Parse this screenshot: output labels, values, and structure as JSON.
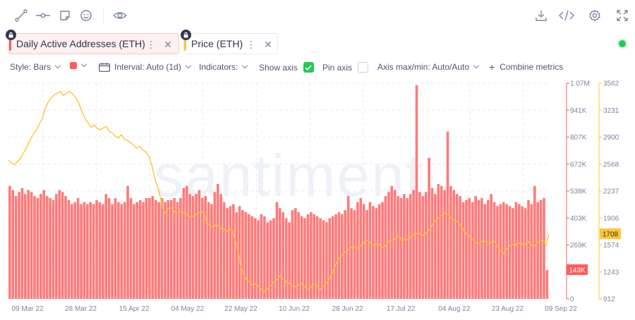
{
  "toolbar": {
    "icons": [
      "line-draw-icon",
      "horizontal-ray-icon",
      "note-icon",
      "emoji-icon",
      "eye-icon",
      "download-icon",
      "embed-code-icon",
      "settings-gear-icon",
      "fullscreen-icon"
    ]
  },
  "metrics": [
    {
      "label": "Daily Active Addresses (ETH)",
      "color": "#ff5b5b",
      "locked": true,
      "active": true
    },
    {
      "label": "Price (ETH)",
      "color": "#ffc532",
      "locked": true,
      "active": false
    }
  ],
  "settings": {
    "style": "Style: Bars",
    "color": "#ff5b5b",
    "interval": "Interval: Auto (1d)",
    "indicators": "Indicators:",
    "show_axis": "Show axis",
    "show_axis_checked": true,
    "pin_axis": "Pin axis",
    "pin_axis_checked": false,
    "axis_maxmin": "Axis max/min: Auto/Auto",
    "combine": "Combine metrics"
  },
  "colors": {
    "bars": "#ff7a7a",
    "price": "#ffc532",
    "grid": "#e7eaf3",
    "status": "#26c953"
  },
  "chart_data": {
    "type": "bar",
    "watermark": "santiment",
    "x_start": "2022-03-04",
    "x_end": "2022-09-09",
    "x_ticks": [
      "09 Mar 22",
      "28 Mar 22",
      "15 Apr 22",
      "04 May 22",
      "22 May 22",
      "10 Jun 22",
      "28 Jun 22",
      "17 Jul 22",
      "04 Aug 22",
      "23 Aug 22",
      "09 Sep 22"
    ],
    "y_left": {
      "min": 0,
      "max": 1070000,
      "ticks": [
        "1.07M",
        "941K",
        "807K",
        "672K",
        "538K",
        "403K",
        "269K",
        "134K",
        "0"
      ],
      "color": "#ff5b5b"
    },
    "y_right": {
      "min": 912,
      "max": 3562,
      "ticks": [
        "3562",
        "3231",
        "2900",
        "2568",
        "2237",
        "1906",
        "1574",
        "1243",
        "912"
      ],
      "color": "#ffc532"
    },
    "current_values": {
      "daily_active_addresses": "143K",
      "price": "1708"
    },
    "series": [
      {
        "name": "Daily Active Addresses (ETH)",
        "axis": "left",
        "type": "bar",
        "values": [
          560000,
          540000,
          510000,
          530000,
          550000,
          520000,
          540000,
          530000,
          510000,
          500000,
          520000,
          540000,
          510000,
          500000,
          490000,
          520000,
          540000,
          530000,
          510000,
          490000,
          470000,
          480000,
          500000,
          470000,
          480000,
          470000,
          480000,
          470000,
          490000,
          480000,
          470000,
          520000,
          500000,
          470000,
          500000,
          480000,
          470000,
          480000,
          560000,
          500000,
          470000,
          480000,
          490000,
          480000,
          500000,
          500000,
          510000,
          490000,
          480000,
          500000,
          480000,
          490000,
          490000,
          500000,
          480000,
          500000,
          550000,
          560000,
          520000,
          510000,
          520000,
          540000,
          500000,
          510000,
          480000,
          470000,
          530000,
          570000,
          520000,
          480000,
          450000,
          460000,
          470000,
          430000,
          460000,
          440000,
          430000,
          420000,
          410000,
          400000,
          390000,
          420000,
          410000,
          380000,
          390000,
          400000,
          480000,
          450000,
          430000,
          400000,
          380000,
          440000,
          450000,
          430000,
          410000,
          400000,
          420000,
          430000,
          420000,
          410000,
          400000,
          390000,
          380000,
          400000,
          410000,
          420000,
          430000,
          420000,
          440000,
          510000,
          450000,
          440000,
          480000,
          500000,
          470000,
          440000,
          480000,
          460000,
          450000,
          470000,
          480000,
          510000,
          530000,
          560000,
          540000,
          510000,
          500000,
          520000,
          500000,
          520000,
          540000,
          1060000,
          530000,
          510000,
          530000,
          700000,
          550000,
          520000,
          570000,
          560000,
          540000,
          830000,
          560000,
          540000,
          520000,
          510000,
          480000,
          490000,
          500000,
          480000,
          510000,
          490000,
          500000,
          470000,
          490000,
          520000,
          480000,
          460000,
          470000,
          480000,
          470000,
          460000,
          450000,
          480000,
          470000,
          460000,
          450000,
          490000,
          470000,
          560000,
          480000,
          490000,
          500000,
          143000
        ]
      },
      {
        "name": "Price (ETH)",
        "axis": "right",
        "type": "line",
        "values": [
          2620,
          2580,
          2560,
          2600,
          2640,
          2710,
          2780,
          2860,
          2930,
          2980,
          3050,
          3120,
          3250,
          3330,
          3380,
          3420,
          3440,
          3460,
          3410,
          3440,
          3460,
          3430,
          3380,
          3320,
          3220,
          3130,
          3080,
          3020,
          3050,
          3010,
          2990,
          3010,
          3030,
          2970,
          2950,
          2910,
          2890,
          2930,
          2870,
          2860,
          2830,
          2800,
          2760,
          2790,
          2740,
          2720,
          2660,
          2550,
          2380,
          2270,
          2120,
          1960,
          2010,
          2040,
          2000,
          1960,
          1990,
          1980,
          1960,
          1930,
          1920,
          1940,
          1960,
          1980,
          1970,
          1850,
          1810,
          1790,
          1830,
          1800,
          1770,
          1760,
          1740,
          1780,
          1660,
          1530,
          1330,
          1210,
          1140,
          1120,
          1080,
          1100,
          1060,
          1020,
          1000,
          1040,
          1080,
          1120,
          1150,
          1200,
          1160,
          1120,
          1100,
          1070,
          1060,
          1080,
          1100,
          1060,
          1040,
          1060,
          1090,
          1080,
          1030,
          1060,
          1100,
          1150,
          1230,
          1320,
          1400,
          1440,
          1480,
          1510,
          1540,
          1560,
          1520,
          1560,
          1580,
          1630,
          1620,
          1580,
          1570,
          1590,
          1560,
          1540,
          1590,
          1640,
          1630,
          1660,
          1690,
          1620,
          1650,
          1640,
          1680,
          1700,
          1720,
          1710,
          1690,
          1730,
          1760,
          1830,
          1880,
          1910,
          1940,
          1970,
          1950,
          1900,
          1880,
          1860,
          1820,
          1760,
          1710,
          1680,
          1640,
          1600,
          1590,
          1620,
          1620,
          1590,
          1600,
          1630,
          1560,
          1510,
          1470,
          1520,
          1560,
          1580,
          1570,
          1600,
          1590,
          1570,
          1620,
          1590,
          1550,
          1600,
          1620,
          1640,
          1570,
          1708
        ]
      }
    ]
  }
}
